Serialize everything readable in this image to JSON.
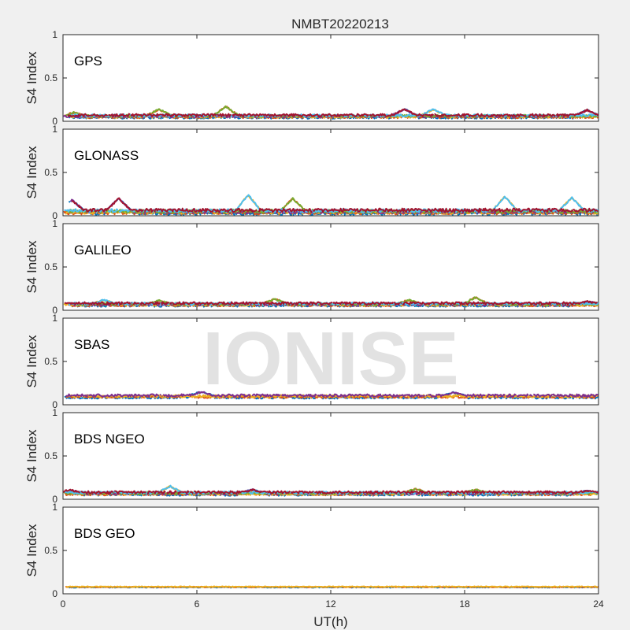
{
  "figure": {
    "title": "NMBT20220213",
    "xlabel": "UT(h)",
    "watermark": "IONISE"
  },
  "colors": [
    "#0072bd",
    "#d95319",
    "#edb120",
    "#7e2f8e",
    "#77ac30",
    "#4dbeee",
    "#a2142f"
  ],
  "chart_data": [
    {
      "type": "scatter",
      "panel": "GPS",
      "ylabel": "S4 Index",
      "xlim": [
        0,
        24
      ],
      "ylim": [
        0,
        1
      ],
      "xticks": [
        0,
        6,
        12,
        18,
        24
      ],
      "yticks": [
        0,
        0.5,
        1
      ],
      "series_count": 7,
      "baseline": 0.06,
      "spread": 0.03,
      "peaks": [
        [
          0.5,
          0.1
        ],
        [
          4.3,
          0.14
        ],
        [
          7.3,
          0.17
        ],
        [
          15.3,
          0.14
        ],
        [
          16.6,
          0.14
        ],
        [
          23.5,
          0.13
        ]
      ]
    },
    {
      "type": "scatter",
      "panel": "GLONASS",
      "ylabel": "S4 Index",
      "xlim": [
        0,
        24
      ],
      "ylim": [
        0,
        1
      ],
      "xticks": [
        0,
        6,
        12,
        18,
        24
      ],
      "yticks": [
        0,
        0.5,
        1
      ],
      "series_count": 7,
      "baseline": 0.05,
      "spread": 0.04,
      "peaks": [
        [
          0.4,
          0.18
        ],
        [
          2.5,
          0.2
        ],
        [
          8.3,
          0.24
        ],
        [
          10.3,
          0.2
        ],
        [
          19.8,
          0.22
        ],
        [
          22.8,
          0.21
        ]
      ]
    },
    {
      "type": "scatter",
      "panel": "GALILEO",
      "ylabel": "S4 Index",
      "xlim": [
        0,
        24
      ],
      "ylim": [
        0,
        1
      ],
      "xticks": [
        0,
        6,
        12,
        18,
        24
      ],
      "yticks": [
        0,
        0.5,
        1
      ],
      "series_count": 7,
      "baseline": 0.07,
      "spread": 0.03,
      "peaks": [
        [
          1.8,
          0.12
        ],
        [
          4.3,
          0.11
        ],
        [
          9.5,
          0.13
        ],
        [
          15.5,
          0.12
        ],
        [
          18.5,
          0.15
        ],
        [
          23.5,
          0.1
        ]
      ]
    },
    {
      "type": "scatter",
      "panel": "SBAS",
      "ylabel": "S4 Index",
      "xlim": [
        0,
        24
      ],
      "ylim": [
        0,
        1
      ],
      "xticks": [
        0,
        6,
        12,
        18,
        24
      ],
      "yticks": [
        0,
        0.5,
        1
      ],
      "series_count": 4,
      "baseline": 0.1,
      "spread": 0.03,
      "peaks": [
        [
          6.2,
          0.15
        ],
        [
          17.5,
          0.14
        ]
      ]
    },
    {
      "type": "scatter",
      "panel": "BDS NGEO",
      "ylabel": "S4 Index",
      "xlim": [
        0,
        24
      ],
      "ylim": [
        0,
        1
      ],
      "xticks": [
        0,
        6,
        12,
        18,
        24
      ],
      "yticks": [
        0,
        0.5,
        1
      ],
      "series_count": 7,
      "baseline": 0.07,
      "spread": 0.03,
      "peaks": [
        [
          0.3,
          0.11
        ],
        [
          4.8,
          0.15
        ],
        [
          8.5,
          0.11
        ],
        [
          15.8,
          0.12
        ],
        [
          18.5,
          0.11
        ],
        [
          23.5,
          0.1
        ]
      ]
    },
    {
      "type": "scatter",
      "panel": "BDS GEO",
      "ylabel": "S4 Index",
      "xlim": [
        0,
        24
      ],
      "ylim": [
        0,
        1
      ],
      "xticks": [
        0,
        6,
        12,
        18,
        24
      ],
      "yticks": [
        0,
        0.5,
        1
      ],
      "series_count": 3,
      "baseline": 0.08,
      "spread": 0.01,
      "peaks": []
    }
  ]
}
